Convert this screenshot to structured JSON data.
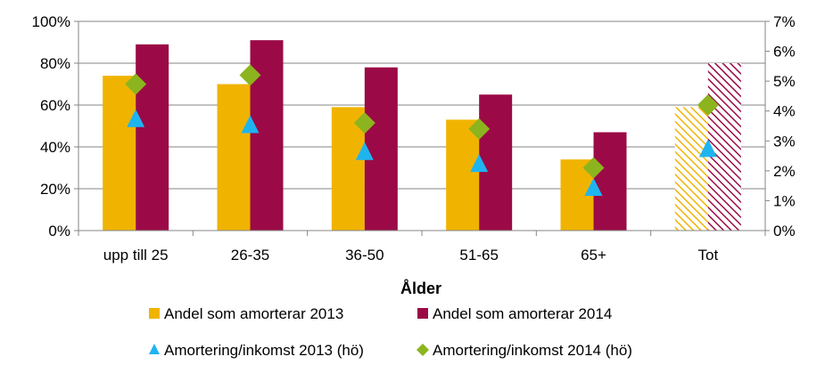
{
  "chart_data": {
    "type": "bar",
    "title": "",
    "xlabel": "Ålder",
    "categories": [
      "upp till 25",
      "26-35",
      "36-50",
      "51-65",
      "65+",
      "Tot"
    ],
    "hatched_categories": [
      "Tot"
    ],
    "y_left": {
      "ylim": [
        0,
        100
      ],
      "ticks": [
        "0%",
        "20%",
        "40%",
        "60%",
        "80%",
        "100%"
      ],
      "tick_values": [
        0,
        20,
        40,
        60,
        80,
        100
      ]
    },
    "y_right": {
      "ylim": [
        0,
        7
      ],
      "ticks": [
        "0%",
        "1%",
        "2%",
        "3%",
        "4%",
        "5%",
        "6%",
        "7%"
      ],
      "tick_values": [
        0,
        1,
        2,
        3,
        4,
        5,
        6,
        7
      ]
    },
    "grid": true,
    "legend_position": "bottom",
    "series": [
      {
        "name": "Andel som amorterar 2013",
        "kind": "bar",
        "axis": "left",
        "color": "#F0B400",
        "values": [
          74,
          70,
          59,
          53,
          34,
          59
        ]
      },
      {
        "name": "Andel som amorterar 2014",
        "kind": "bar",
        "axis": "left",
        "color": "#9B0A46",
        "values": [
          89,
          91,
          78,
          65,
          47,
          80
        ]
      },
      {
        "name": "Amortering/inkomst 2013 (hö)",
        "kind": "marker",
        "marker": "triangle",
        "axis": "right",
        "color": "#1EB4F0",
        "values": [
          3.7,
          3.5,
          2.6,
          2.2,
          1.4,
          2.7
        ]
      },
      {
        "name": "Amortering/inkomst 2014 (hö)",
        "kind": "marker",
        "marker": "diamond",
        "axis": "right",
        "color": "#8CB41E",
        "values": [
          4.9,
          5.2,
          3.6,
          3.4,
          2.1,
          4.2
        ]
      }
    ]
  }
}
